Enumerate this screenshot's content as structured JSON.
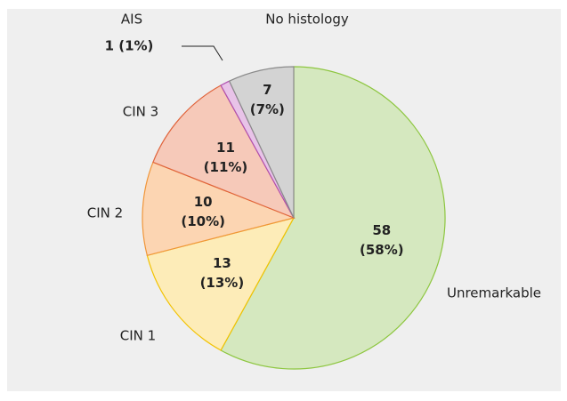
{
  "chart_data": {
    "type": "pie",
    "categories": [
      "Unremarkable",
      "CIN 1",
      "CIN 2",
      "CIN 3",
      "AIS",
      "No histology"
    ],
    "values": [
      58,
      13,
      10,
      11,
      1,
      7
    ],
    "value_labels": [
      [
        "58",
        "(58%)"
      ],
      [
        "13",
        "(13%)"
      ],
      [
        "10",
        "(10%)"
      ],
      [
        "11",
        "(11%)"
      ],
      [
        "1 (1%)"
      ],
      [
        "7",
        "(7%)"
      ]
    ],
    "colors": [
      "#d5e8bf",
      "#fdecb8",
      "#fcd5b2",
      "#f6c9b9",
      "#e8c3e8",
      "#d3d3d3"
    ],
    "edge_colors": [
      "#8dc63f",
      "#f2c200",
      "#f0963a",
      "#e0643c",
      "#b050b0",
      "#8a8a8a"
    ]
  }
}
